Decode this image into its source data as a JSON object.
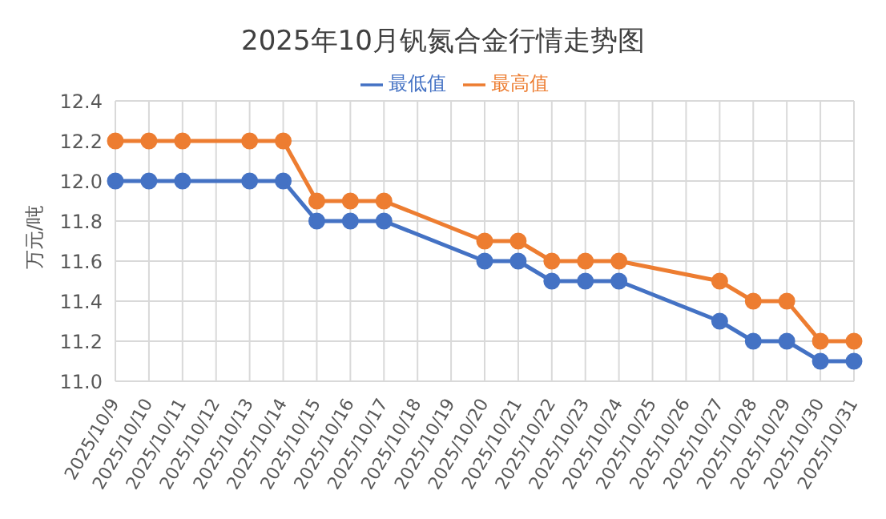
{
  "chart_data": {
    "type": "line",
    "title": "2025年10月钒氮合金行情走势图",
    "ylabel": "万元/吨",
    "categories": [
      "2025/10/9",
      "2025/10/10",
      "2025/10/11",
      "2025/10/12",
      "2025/10/13",
      "2025/10/14",
      "2025/10/15",
      "2025/10/16",
      "2025/10/17",
      "2025/10/18",
      "2025/10/19",
      "2025/10/20",
      "2025/10/21",
      "2025/10/22",
      "2025/10/23",
      "2025/10/24",
      "2025/10/25",
      "2025/10/26",
      "2025/10/27",
      "2025/10/28",
      "2025/10/29",
      "2025/10/30",
      "2025/10/31"
    ],
    "series": [
      {
        "name": "最低值",
        "color": "#4472c4",
        "values": [
          12.0,
          12.0,
          12.0,
          null,
          12.0,
          12.0,
          11.8,
          11.8,
          11.8,
          null,
          null,
          11.6,
          11.6,
          11.5,
          11.5,
          11.5,
          null,
          null,
          11.3,
          11.2,
          11.2,
          11.1,
          11.1
        ]
      },
      {
        "name": "最高值",
        "color": "#ed7d31",
        "values": [
          12.2,
          12.2,
          12.2,
          null,
          12.2,
          12.2,
          11.9,
          11.9,
          11.9,
          null,
          null,
          11.7,
          11.7,
          11.6,
          11.6,
          11.6,
          null,
          null,
          11.5,
          11.4,
          11.4,
          11.2,
          11.2
        ]
      }
    ],
    "ylim": [
      11.0,
      12.4
    ],
    "yticks": [
      {
        "value": 11.0,
        "label": "11.0"
      },
      {
        "value": 11.2,
        "label": "11.2"
      },
      {
        "value": 11.4,
        "label": "11.4"
      },
      {
        "value": 11.6,
        "label": "11.6"
      },
      {
        "value": 11.8,
        "label": "11.8"
      },
      {
        "value": 12.0,
        "label": "12.0"
      },
      {
        "value": 12.2,
        "label": "12.2"
      },
      {
        "value": 12.4,
        "label": "12.4"
      }
    ],
    "grid": true,
    "legend": "top",
    "marker": "circle",
    "line_style": "solid"
  }
}
